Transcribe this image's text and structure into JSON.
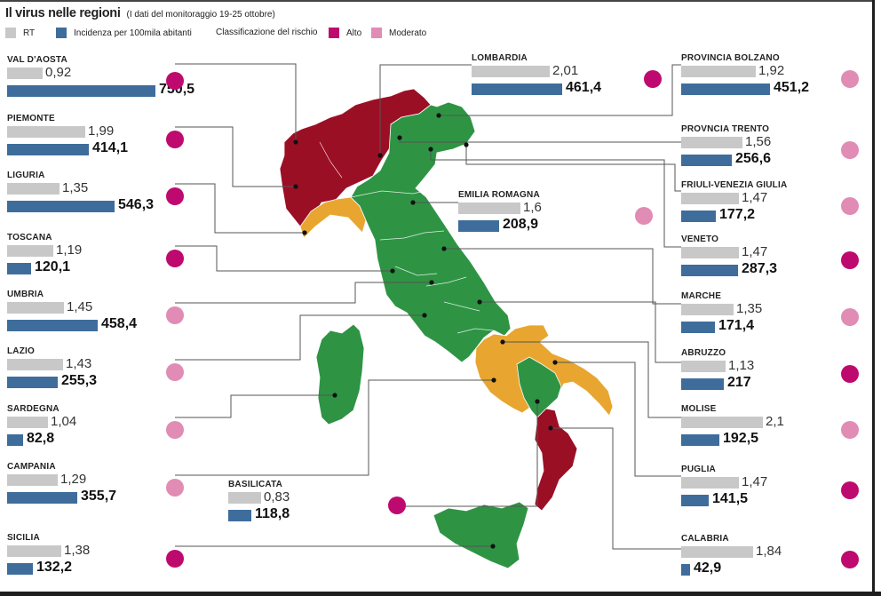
{
  "header": {
    "title": "Il virus nelle regioni",
    "subtitle": "(I dati del monitoraggio 19-25 ottobre)"
  },
  "legend": {
    "rt": "RT",
    "incidence": "Incidenza per 100mila abitanti",
    "risk_title": "Classificazione del rischio",
    "high": "Alto",
    "moderate": "Moderato"
  },
  "colors": {
    "rt_bar": "#c8c8c8",
    "incidence_bar": "#3e6d9c",
    "risk_high": "#be0a6e",
    "risk_moderate": "#e08cb4",
    "map_high": "#9b0f25",
    "map_moderate": "#e8a630",
    "map_low": "#2e9444"
  },
  "chart_data": {
    "type": "bar",
    "series": [
      {
        "name": "RT",
        "key": "rt"
      },
      {
        "name": "Incidenza per 100mila abitanti",
        "key": "incidence"
      }
    ],
    "regions": [
      {
        "name": "VAL D'AOSTA",
        "rt": 0.92,
        "rt_label": "0,92",
        "incidence": 750.5,
        "incidence_label": "750,5",
        "risk": "alto"
      },
      {
        "name": "PIEMONTE",
        "rt": 1.99,
        "rt_label": "1,99",
        "incidence": 414.1,
        "incidence_label": "414,1",
        "risk": "alto"
      },
      {
        "name": "LIGURIA",
        "rt": 1.35,
        "rt_label": "1,35",
        "incidence": 546.3,
        "incidence_label": "546,3",
        "risk": "alto"
      },
      {
        "name": "TOSCANA",
        "rt": 1.19,
        "rt_label": "1,19",
        "incidence": 120.1,
        "incidence_label": "120,1",
        "risk": "alto"
      },
      {
        "name": "UMBRIA",
        "rt": 1.45,
        "rt_label": "1,45",
        "incidence": 458.4,
        "incidence_label": "458,4",
        "risk": "moderato"
      },
      {
        "name": "LAZIO",
        "rt": 1.43,
        "rt_label": "1,43",
        "incidence": 255.3,
        "incidence_label": "255,3",
        "risk": "moderato"
      },
      {
        "name": "SARDEGNA",
        "rt": 1.04,
        "rt_label": "1,04",
        "incidence": 82.8,
        "incidence_label": "82,8",
        "risk": "moderato"
      },
      {
        "name": "CAMPANIA",
        "rt": 1.29,
        "rt_label": "1,29",
        "incidence": 355.7,
        "incidence_label": "355,7",
        "risk": "moderato"
      },
      {
        "name": "SICILIA",
        "rt": 1.38,
        "rt_label": "1,38",
        "incidence": 132.2,
        "incidence_label": "132,2",
        "risk": "alto"
      },
      {
        "name": "LOMBARDIA",
        "rt": 2.01,
        "rt_label": "2,01",
        "incidence": 461.4,
        "incidence_label": "461,4",
        "risk": "alto"
      },
      {
        "name": "EMILIA ROMAGNA",
        "rt": 1.6,
        "rt_label": "1,6",
        "incidence": 208.9,
        "incidence_label": "208,9",
        "risk": "moderato"
      },
      {
        "name": "BASILICATA",
        "rt": 0.83,
        "rt_label": "0,83",
        "incidence": 118.8,
        "incidence_label": "118,8",
        "risk": "alto"
      },
      {
        "name": "PROVINCIA BOLZANO",
        "rt": 1.92,
        "rt_label": "1,92",
        "incidence": 451.2,
        "incidence_label": "451,2",
        "risk": "moderato"
      },
      {
        "name": "PROVNCIA TRENTO",
        "rt": 1.56,
        "rt_label": "1,56",
        "incidence": 256.6,
        "incidence_label": "256,6",
        "risk": "moderato"
      },
      {
        "name": "FRIULI-VENEZIA GIULIA",
        "rt": 1.47,
        "rt_label": "1,47",
        "incidence": 177.2,
        "incidence_label": "177,2",
        "risk": "moderato"
      },
      {
        "name": "VENETO",
        "rt": 1.47,
        "rt_label": "1,47",
        "incidence": 287.3,
        "incidence_label": "287,3",
        "risk": "alto"
      },
      {
        "name": "MARCHE",
        "rt": 1.35,
        "rt_label": "1,35",
        "incidence": 171.4,
        "incidence_label": "171,4",
        "risk": "moderato"
      },
      {
        "name": "ABRUZZO",
        "rt": 1.13,
        "rt_label": "1,13",
        "incidence": 217,
        "incidence_label": "217",
        "risk": "alto"
      },
      {
        "name": "MOLISE",
        "rt": 2.1,
        "rt_label": "2,1",
        "incidence": 192.5,
        "incidence_label": "192,5",
        "risk": "moderato"
      },
      {
        "name": "PUGLIA",
        "rt": 1.47,
        "rt_label": "1,47",
        "incidence": 141.5,
        "incidence_label": "141,5",
        "risk": "alto"
      },
      {
        "name": "CALABRIA",
        "rt": 1.84,
        "rt_label": "1,84",
        "incidence": 42.9,
        "incidence_label": "42,9",
        "risk": "alto"
      }
    ]
  },
  "map": {
    "high_risk_areas": [
      "VAL D'AOSTA",
      "PIEMONTE",
      "LOMBARDIA",
      "CALABRIA"
    ],
    "moderate_risk_areas": [
      "LIGURIA",
      "CAMPANIA",
      "BASILICATA",
      "PUGLIA"
    ],
    "low_risk_areas": [
      "PROVINCIA BOLZANO",
      "PROVNCIA TRENTO",
      "VENETO",
      "FRIULI-VENEZIA GIULIA",
      "EMILIA ROMAGNA",
      "TOSCANA",
      "UMBRIA",
      "MARCHE",
      "LAZIO",
      "ABRUZZO",
      "MOLISE",
      "SARDEGNA",
      "SICILIA"
    ]
  }
}
